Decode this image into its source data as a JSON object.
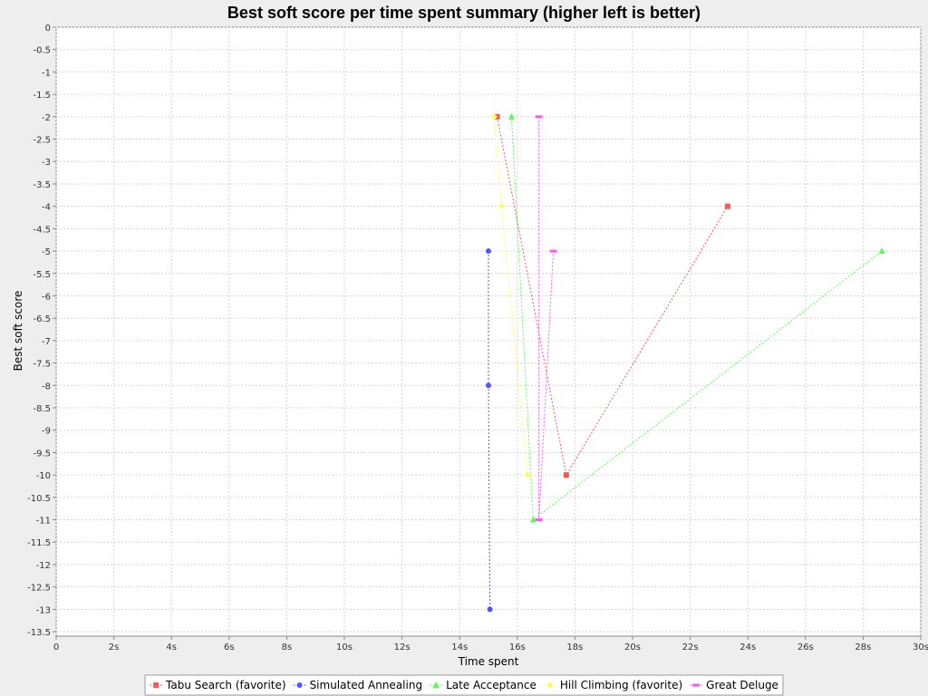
{
  "chart_data": {
    "type": "line",
    "title": "Best soft score per time spent summary (higher left is better)",
    "xlabel": "Time spent",
    "ylabel": "Best soft score",
    "xlim": [
      0,
      30
    ],
    "ylim": [
      -13.6,
      0
    ],
    "x_ticks": [
      {
        "v": 0,
        "label": "0"
      },
      {
        "v": 2,
        "label": "2s"
      },
      {
        "v": 4,
        "label": "4s"
      },
      {
        "v": 6,
        "label": "6s"
      },
      {
        "v": 8,
        "label": "8s"
      },
      {
        "v": 10,
        "label": "10s"
      },
      {
        "v": 12,
        "label": "12s"
      },
      {
        "v": 14,
        "label": "14s"
      },
      {
        "v": 16,
        "label": "16s"
      },
      {
        "v": 18,
        "label": "18s"
      },
      {
        "v": 20,
        "label": "20s"
      },
      {
        "v": 22,
        "label": "22s"
      },
      {
        "v": 24,
        "label": "24s"
      },
      {
        "v": 26,
        "label": "26s"
      },
      {
        "v": 28,
        "label": "28s"
      },
      {
        "v": 30,
        "label": "30s"
      }
    ],
    "y_ticks": [
      {
        "v": 0,
        "label": "0"
      },
      {
        "v": -0.5,
        "label": "-0.5"
      },
      {
        "v": -1,
        "label": "-1"
      },
      {
        "v": -1.5,
        "label": "-1.5"
      },
      {
        "v": -2,
        "label": "-2"
      },
      {
        "v": -2.5,
        "label": "-2.5"
      },
      {
        "v": -3,
        "label": "-3"
      },
      {
        "v": -3.5,
        "label": "-3.5"
      },
      {
        "v": -4,
        "label": "-4"
      },
      {
        "v": -4.5,
        "label": "-4.5"
      },
      {
        "v": -5,
        "label": "-5"
      },
      {
        "v": -5.5,
        "label": "-5.5"
      },
      {
        "v": -6,
        "label": "-6"
      },
      {
        "v": -6.5,
        "label": "-6.5"
      },
      {
        "v": -7,
        "label": "-7"
      },
      {
        "v": -7.5,
        "label": "-7.5"
      },
      {
        "v": -8,
        "label": "-8"
      },
      {
        "v": -8.5,
        "label": "-8.5"
      },
      {
        "v": -9,
        "label": "-9"
      },
      {
        "v": -9.5,
        "label": "-9.5"
      },
      {
        "v": -10,
        "label": "-10"
      },
      {
        "v": -10.5,
        "label": "-10.5"
      },
      {
        "v": -11,
        "label": "-11"
      },
      {
        "v": -11.5,
        "label": "-11.5"
      },
      {
        "v": -12,
        "label": "-12"
      },
      {
        "v": -12.5,
        "label": "-12.5"
      },
      {
        "v": -13,
        "label": "-13"
      },
      {
        "v": -13.5,
        "label": "-13.5"
      }
    ],
    "grid": true,
    "legend_position": "bottom-center",
    "series": [
      {
        "name": "Tabu Search (favorite)",
        "color": "#ff5555",
        "marker": "square",
        "points": [
          [
            15.3,
            -2
          ],
          [
            17.7,
            -10
          ],
          [
            23.3,
            -4
          ]
        ]
      },
      {
        "name": "Simulated Annealing",
        "color": "#5555ff",
        "marker": "circle",
        "points": [
          [
            15.0,
            -5
          ],
          [
            15.0,
            -8
          ],
          [
            15.05,
            -13
          ]
        ]
      },
      {
        "name": "Late Acceptance",
        "color": "#55ff55",
        "marker": "triangle",
        "points": [
          [
            15.8,
            -2
          ],
          [
            16.55,
            -11
          ],
          [
            28.65,
            -5
          ]
        ]
      },
      {
        "name": "Hill Climbing (favorite)",
        "color": "#ffff55",
        "marker": "diamond",
        "points": [
          [
            15.2,
            -2
          ],
          [
            15.45,
            -4
          ],
          [
            16.35,
            -10
          ]
        ]
      },
      {
        "name": "Great Deluge",
        "color": "#ff55ff",
        "marker": "hbar",
        "points": [
          [
            16.75,
            -2
          ],
          [
            16.75,
            -11
          ],
          [
            17.25,
            -5
          ]
        ]
      }
    ]
  }
}
